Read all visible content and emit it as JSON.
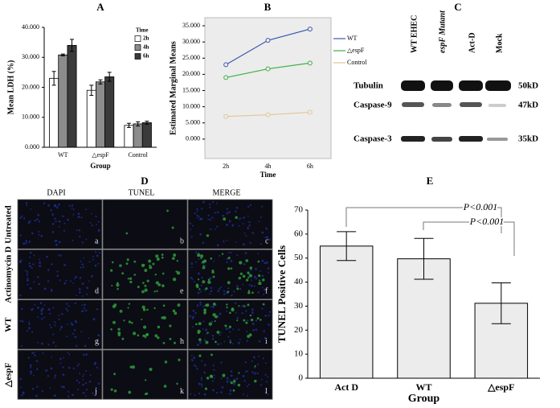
{
  "chart_data": [
    {
      "panel": "A",
      "type": "bar",
      "ylabel": "Mean LDH (%)",
      "xlabel": "Group",
      "categories": [
        "WT",
        "△espF",
        "Control"
      ],
      "legend_title": "Time",
      "legend": "upper right",
      "series": [
        {
          "name": "2h",
          "color": "#ffffff",
          "values": [
            23,
            19,
            7.3
          ],
          "errors": [
            2.3,
            1.7,
            0.7
          ]
        },
        {
          "name": "4h",
          "color": "#8c8c8c",
          "values": [
            30.8,
            21.8,
            7.8
          ],
          "errors": [
            0.3,
            0.7,
            0.7
          ]
        },
        {
          "name": "6h",
          "color": "#3a3a3a",
          "values": [
            34,
            23.5,
            8.2
          ],
          "errors": [
            2,
            1.5,
            0.5
          ]
        }
      ],
      "ylim": [
        0,
        40
      ],
      "yticks": [
        {
          "value": 0,
          "label": "0.000"
        },
        {
          "value": 10,
          "label": "10.000"
        },
        {
          "value": 20,
          "label": "20.000"
        },
        {
          "value": 30,
          "label": "30.000"
        },
        {
          "value": 40,
          "label": "40.000"
        }
      ]
    },
    {
      "panel": "B",
      "type": "line",
      "ylabel": "Estimated Marginal Means",
      "xlabel": "Time",
      "categories": [
        "2h",
        "4h",
        "6h"
      ],
      "legend": "right",
      "series": [
        {
          "name": "WT",
          "color": "#3a56b0",
          "values": [
            23,
            30.5,
            34
          ]
        },
        {
          "name": "△espF",
          "color": "#3cb043",
          "values": [
            19,
            21.7,
            23.5
          ]
        },
        {
          "name": "Control",
          "color": "#e0c890",
          "values": [
            7,
            7.5,
            8.3
          ]
        }
      ],
      "ylim": [
        -6,
        37.5
      ],
      "yticks": [
        {
          "value": 0,
          "label": "0.000"
        },
        {
          "value": 5,
          "label": "5.000"
        },
        {
          "value": 10,
          "label": "10.000"
        },
        {
          "value": 15,
          "label": "15.000"
        },
        {
          "value": 20,
          "label": "20.000"
        },
        {
          "value": 25,
          "label": "25.000"
        },
        {
          "value": 30,
          "label": "30.000"
        },
        {
          "value": 35,
          "label": "35.000"
        }
      ]
    },
    {
      "panel": "E",
      "type": "bar",
      "ylabel": "TUNEL Positive Cells",
      "xlabel": "Group",
      "categories": [
        "Act D",
        "WT",
        "△espF"
      ],
      "values": [
        55,
        49.7,
        31.2
      ],
      "errors": [
        6,
        8.5,
        8.5
      ],
      "color": "#ececec",
      "ylim": [
        0,
        70
      ],
      "yticks": [
        0,
        10,
        20,
        30,
        40,
        50,
        60,
        70
      ],
      "annotations": [
        "P<0.001",
        "P<0.001"
      ]
    }
  ],
  "blot": {
    "panel": "C",
    "lanes": [
      "WT EHEC",
      "espF Mutant",
      "Act-D",
      "Mock"
    ],
    "rows": [
      {
        "name": "Tubulin",
        "size": "50kD"
      },
      {
        "name": "Caspase-9",
        "size": "47kD"
      },
      {
        "name": "Caspase-3",
        "size": "35kD"
      }
    ]
  },
  "micrographs": {
    "panel": "D",
    "columns": [
      "DAPI",
      "TUNEL",
      "MERGE"
    ],
    "rows": [
      "Untreated",
      "Actinomycin D",
      "WT",
      "△espF"
    ],
    "letters": [
      "a",
      "b",
      "c",
      "d",
      "e",
      "f",
      "g",
      "h",
      "i",
      "j",
      "k",
      "l"
    ]
  }
}
